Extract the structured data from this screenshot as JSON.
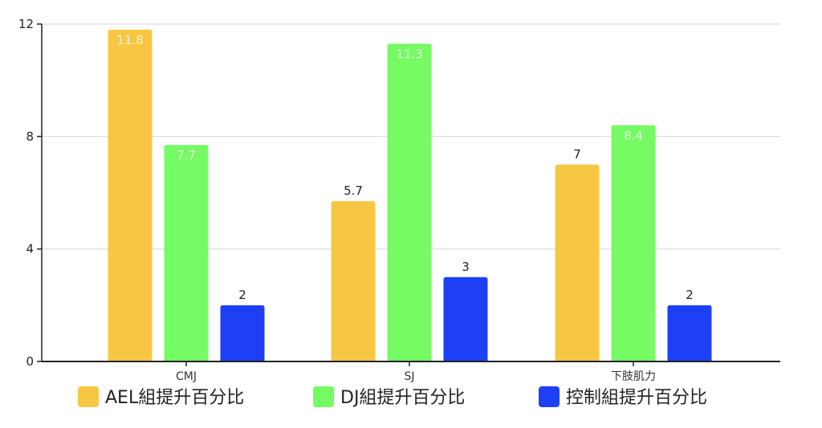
{
  "chart_data": {
    "type": "bar",
    "categories": [
      "CMJ",
      "SJ",
      "下肢肌力"
    ],
    "series": [
      {
        "name": "AEL組提升百分比",
        "color": "#F7C744",
        "values": [
          11.8,
          5.7,
          7
        ]
      },
      {
        "name": "DJ組提升百分比",
        "color": "#76FB65",
        "values": [
          7.7,
          11.3,
          8.4
        ]
      },
      {
        "name": "控制組提升百分比",
        "color": "#1E40F5",
        "values": [
          2,
          3,
          2
        ]
      }
    ],
    "data_labels": [
      [
        "11.8",
        "5.7",
        "7"
      ],
      [
        "7.7",
        "11.3",
        "8.4"
      ],
      [
        "2",
        "3",
        "2"
      ]
    ],
    "y_ticks": [
      "0",
      "4",
      "8",
      "12"
    ],
    "ylim": [
      0,
      12
    ],
    "grid": true,
    "legend": "bottom"
  }
}
